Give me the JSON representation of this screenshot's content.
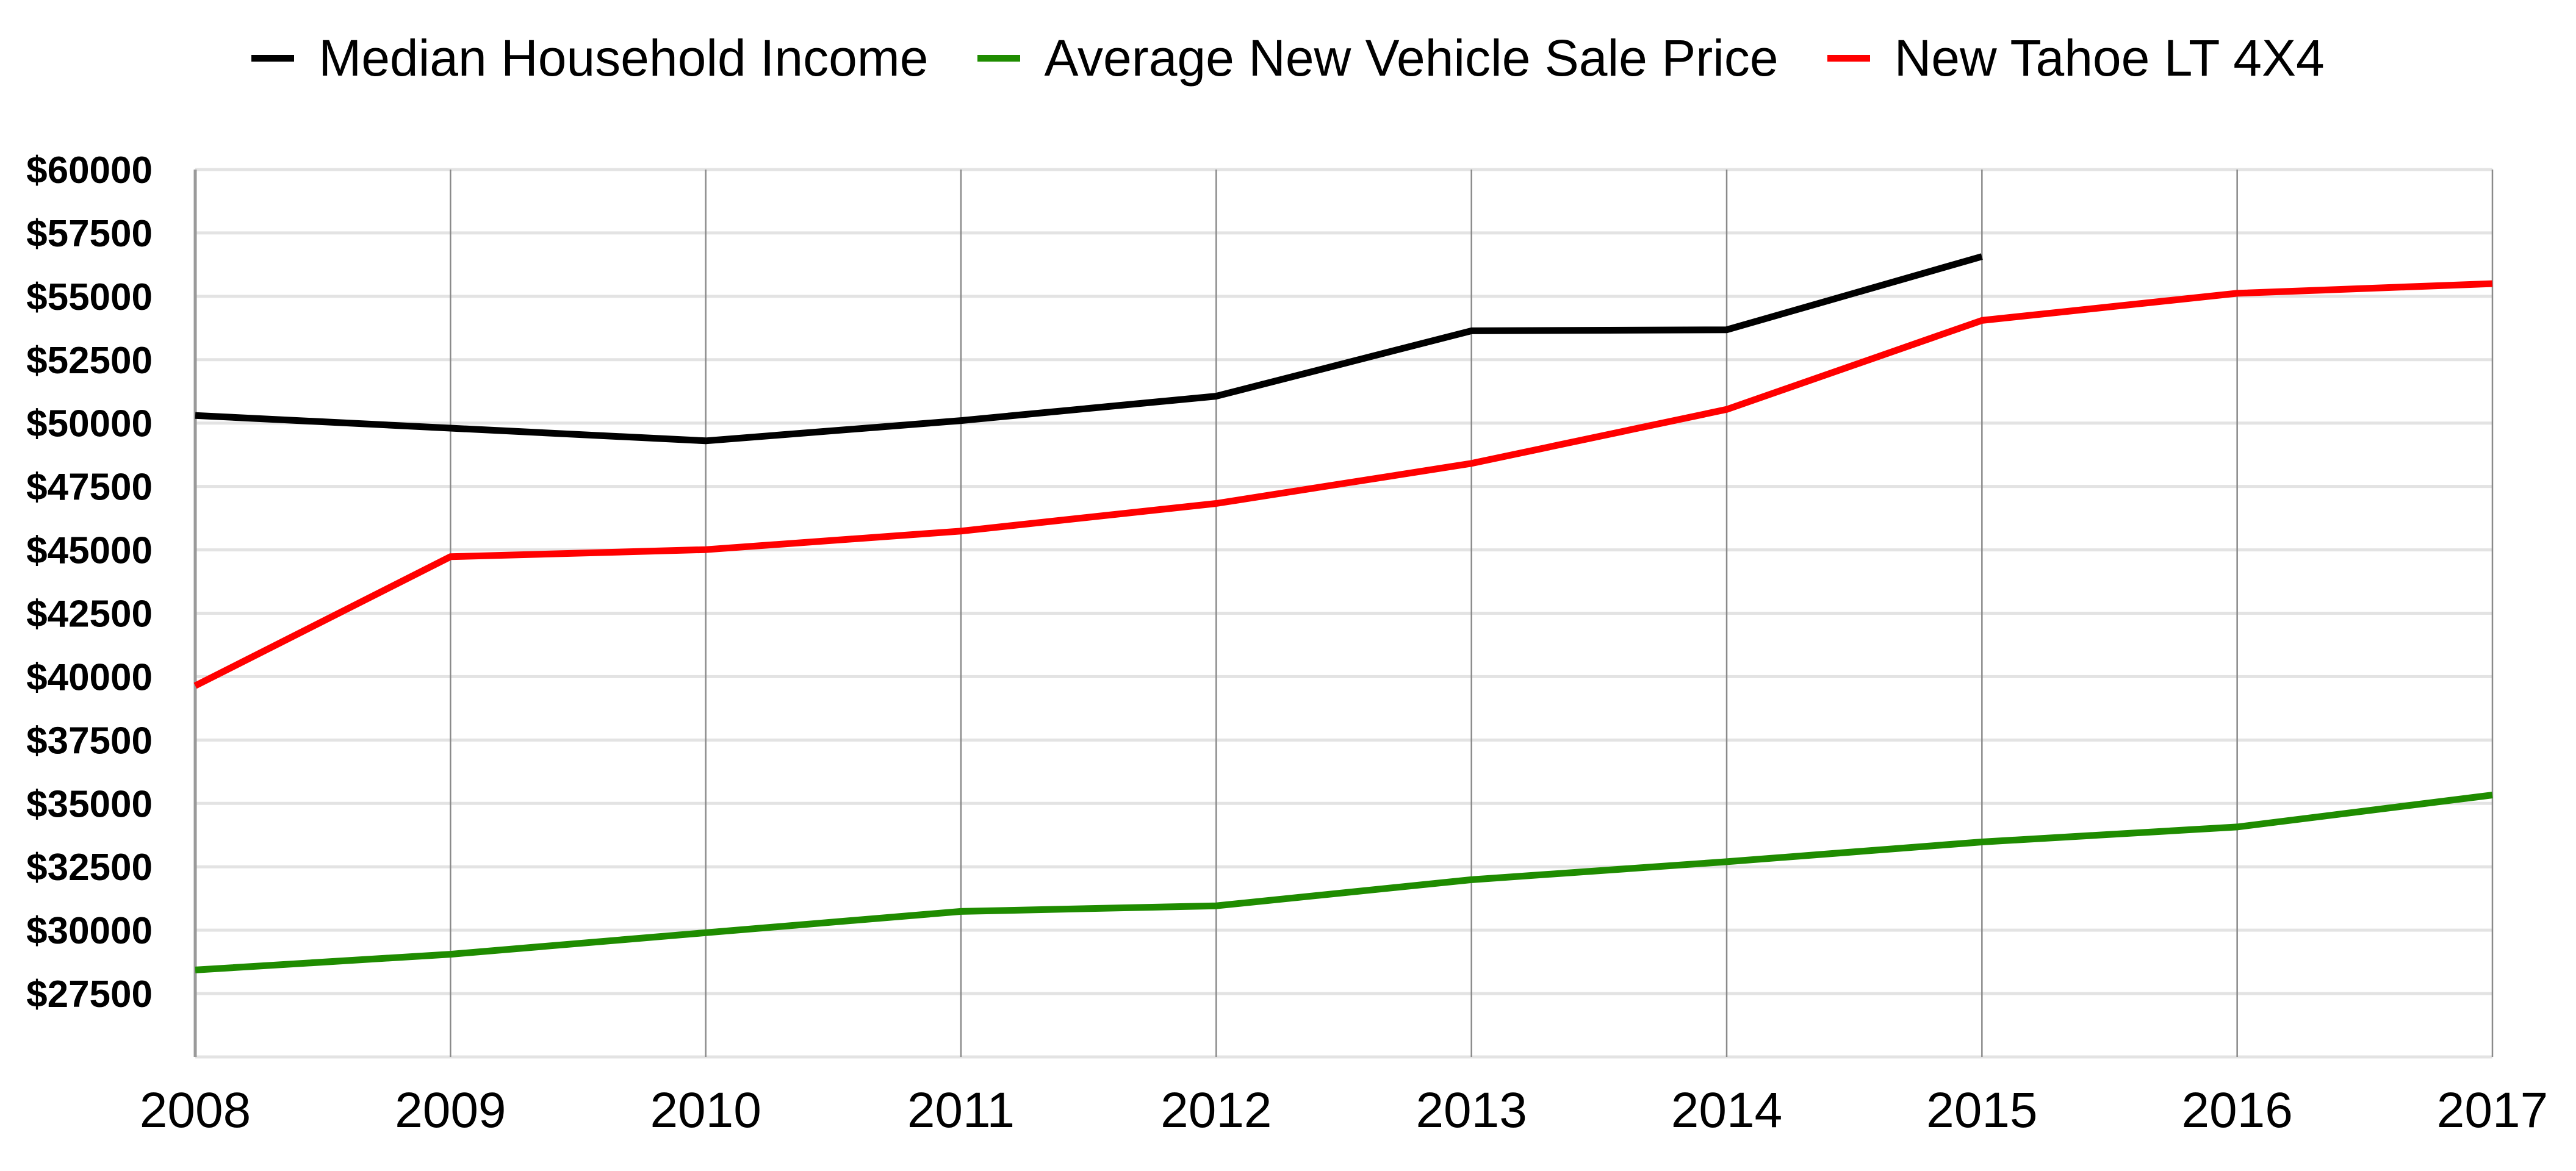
{
  "chart_data": {
    "type": "line",
    "title": "",
    "xlabel": "",
    "ylabel": "",
    "x": [
      2008,
      2009,
      2010,
      2011,
      2012,
      2013,
      2014,
      2015,
      2016,
      2017
    ],
    "x_tick_labels": [
      "2008",
      "2009",
      "2010",
      "2011",
      "2012",
      "2013",
      "2014",
      "2015",
      "2016",
      "2017"
    ],
    "xlim": [
      2008,
      2017
    ],
    "ylim": [
      25000,
      60000
    ],
    "y_ticks": [
      27500,
      30000,
      32500,
      35000,
      37500,
      40000,
      42500,
      45000,
      47500,
      50000,
      52500,
      55000,
      57500,
      60000
    ],
    "y_tick_labels": [
      "$27500",
      "$30000",
      "$32500",
      "$35000",
      "$37500",
      "$40000",
      "$42500",
      "$45000",
      "$47500",
      "$50000",
      "$52500",
      "$55000",
      "$57500",
      "$60000"
    ],
    "grid": true,
    "legend_position": "top-center",
    "series": [
      {
        "name": "Median Household Income",
        "color": "#000000",
        "values": [
          50300,
          49800,
          49300,
          50100,
          51060,
          53640,
          53680,
          56570,
          null,
          null
        ]
      },
      {
        "name": "Average New Vehicle Sale Price",
        "color": "#1f8c00",
        "values": [
          28430,
          29050,
          29900,
          30740,
          30960,
          31990,
          32700,
          33480,
          34070,
          35330
        ]
      },
      {
        "name": "New Tahoe LT 4X4",
        "color": "#ff0000",
        "values": [
          39640,
          44730,
          45010,
          45740,
          46830,
          48410,
          50540,
          54050,
          55120,
          55500
        ]
      }
    ]
  }
}
